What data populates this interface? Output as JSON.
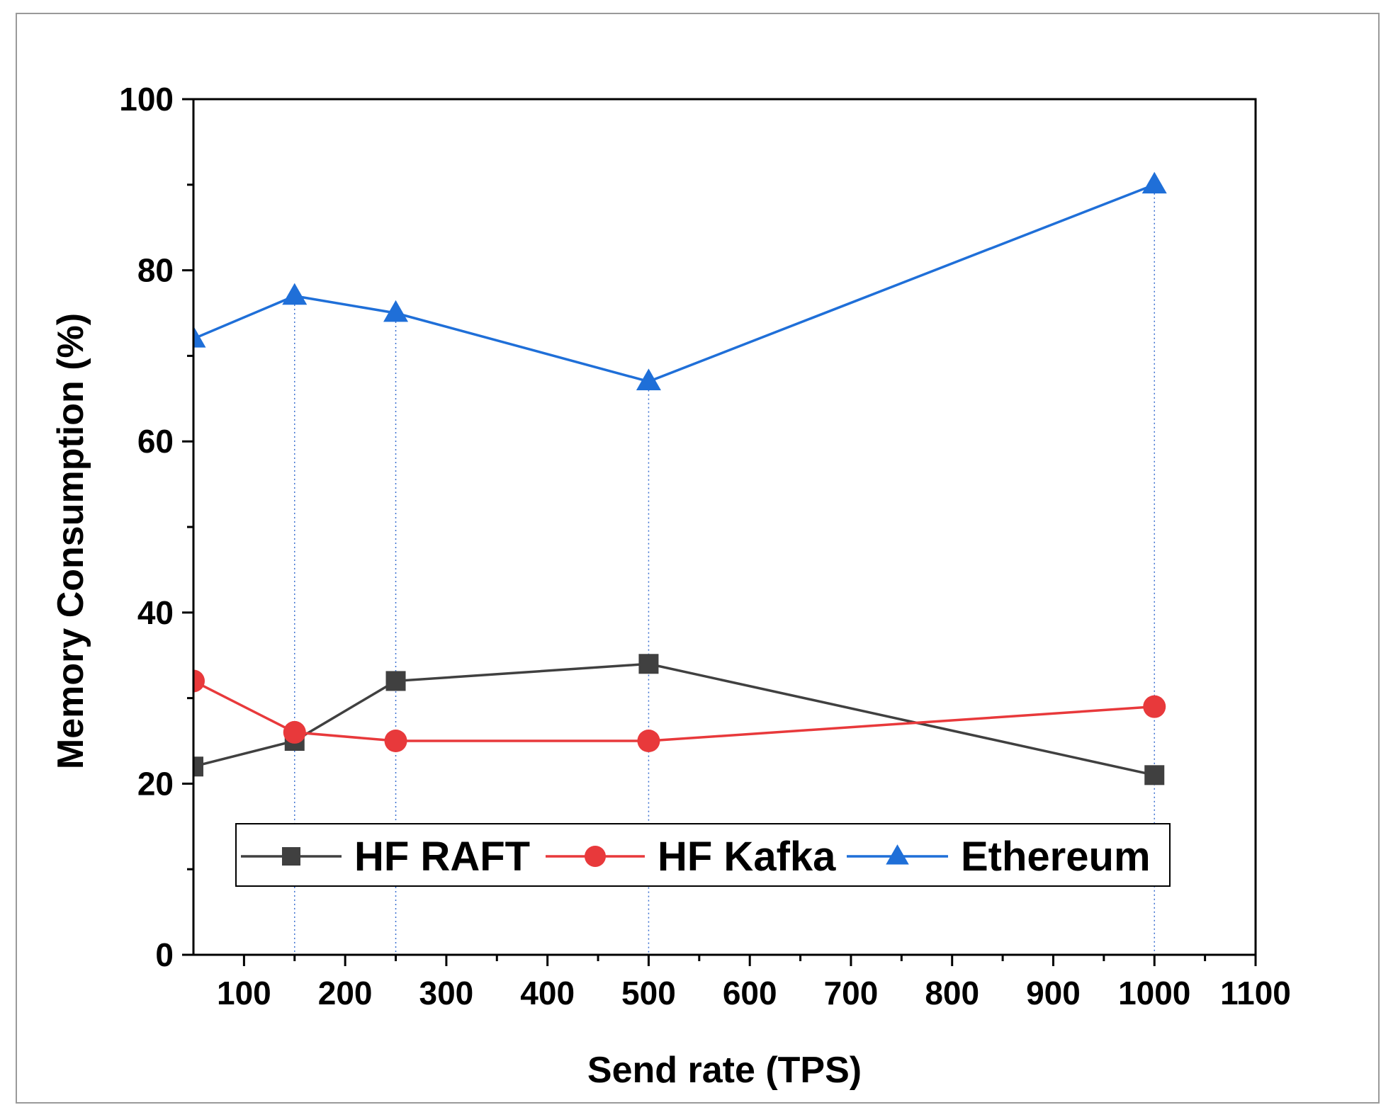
{
  "chart_data": {
    "type": "line",
    "xlabel": "Send rate (TPS)",
    "ylabel": "Memory Consumption (%)",
    "xlim": [
      50,
      1100
    ],
    "ylim": [
      0,
      100
    ],
    "x_ticks": [
      100,
      200,
      300,
      400,
      500,
      600,
      700,
      800,
      900,
      1000,
      1100
    ],
    "y_ticks": [
      0,
      20,
      40,
      60,
      80,
      100
    ],
    "x": [
      50,
      150,
      250,
      500,
      1000
    ],
    "drop_lines_x": [
      150,
      250,
      500,
      1000
    ],
    "legend_position": "lower-center",
    "series": [
      {
        "name": "HF RAFT",
        "color": "#404040",
        "marker": "square",
        "values": [
          22,
          25,
          32,
          34,
          21
        ]
      },
      {
        "name": "HF Kafka",
        "color": "#e8393b",
        "marker": "circle",
        "values": [
          32,
          26,
          25,
          25,
          29
        ]
      },
      {
        "name": "Ethereum",
        "color": "#1f6fd8",
        "marker": "triangle",
        "values": [
          72,
          77,
          75,
          67,
          90
        ]
      }
    ]
  }
}
